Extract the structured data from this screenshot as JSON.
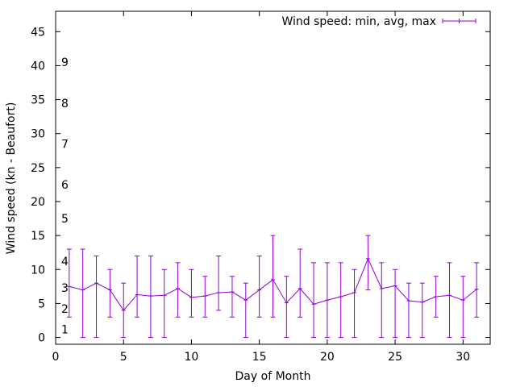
{
  "colors": {
    "series": "#9400d3",
    "axis": "#000000",
    "background": "#ffffff"
  },
  "chart_data": {
    "type": "line",
    "title": "",
    "xlabel": "Day of Month",
    "ylabel": "Wind speed (kn - Beaufort)",
    "xlim": [
      0,
      32
    ],
    "ylim": [
      -1,
      48
    ],
    "xticks": [
      0,
      5,
      10,
      15,
      20,
      25,
      30
    ],
    "yticks": [
      0,
      5,
      10,
      15,
      20,
      25,
      30,
      35,
      40,
      45
    ],
    "grid": false,
    "legend": "top-right",
    "beaufort_labels": [
      {
        "label": "1",
        "y": 1.2
      },
      {
        "label": "2",
        "y": 4.2
      },
      {
        "label": "3",
        "y": 7.3
      },
      {
        "label": "4",
        "y": 11.2
      },
      {
        "label": "5",
        "y": 17.5
      },
      {
        "label": "6",
        "y": 22.5
      },
      {
        "label": "7",
        "y": 28.5
      },
      {
        "label": "8",
        "y": 34.5
      },
      {
        "label": "9",
        "y": 40.5
      }
    ],
    "series": [
      {
        "name": "Wind speed: min, avg, max",
        "x": [
          1,
          2,
          3,
          4,
          5,
          6,
          7,
          8,
          9,
          10,
          11,
          12,
          13,
          14,
          15,
          16,
          17,
          18,
          19,
          20,
          21,
          22,
          23,
          24,
          25,
          26,
          27,
          28,
          29,
          30,
          31
        ],
        "avg": [
          7.5,
          7,
          8,
          7,
          4,
          6.3,
          6.1,
          6.2,
          7.2,
          5.9,
          6.1,
          6.6,
          6.7,
          5.5,
          7.0,
          8.5,
          5.1,
          7.2,
          4.9,
          5.5,
          6.0,
          6.6,
          11.6,
          7.2,
          7.6,
          5.4,
          5.2,
          6.0,
          6.2,
          5.5,
          7.1
        ],
        "min": [
          3,
          0,
          0,
          3,
          0,
          3,
          0,
          0,
          3,
          3,
          3,
          4,
          3,
          0,
          3,
          3,
          0,
          3,
          0,
          0,
          0,
          0,
          7,
          0,
          0,
          0,
          0,
          3,
          0,
          0,
          3
        ],
        "max": [
          13,
          13,
          12,
          10,
          8,
          12,
          12,
          10,
          11,
          10,
          9,
          12,
          9,
          8,
          12,
          15,
          9,
          13,
          11,
          11,
          11,
          10,
          15,
          11,
          10,
          8,
          8,
          9,
          11,
          9,
          11
        ]
      }
    ]
  }
}
